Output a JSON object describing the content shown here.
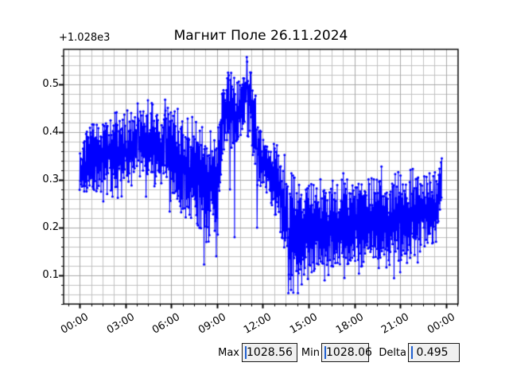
{
  "chart_data": {
    "type": "line",
    "title": "Магнит Поле 26.11.2024",
    "offset_text": "+1.028e3",
    "xlabel": "",
    "ylabel": "",
    "line_color": "#0000ff",
    "marker": "o",
    "grid": {
      "major": true,
      "minor": true,
      "major_color": "#a8a8a8",
      "minor_color": "#c2c2c2"
    },
    "y_offset_base": 1028,
    "xlim": [
      -1.05,
      24.8
    ],
    "ylim": [
      0.04,
      0.5733
    ],
    "xticks": [
      {
        "t": 0,
        "label": "00:00"
      },
      {
        "t": 3,
        "label": "03:00"
      },
      {
        "t": 6,
        "label": "06:00"
      },
      {
        "t": 9,
        "label": "09:00"
      },
      {
        "t": 12,
        "label": "12:00"
      },
      {
        "t": 15,
        "label": "15:00"
      },
      {
        "t": 18,
        "label": "18:00"
      },
      {
        "t": 21,
        "label": "21:00"
      },
      {
        "t": 24,
        "label": "00:00"
      }
    ],
    "yticks": [
      {
        "v": 0.1,
        "label": "0.1"
      },
      {
        "v": 0.2,
        "label": "0.2"
      },
      {
        "v": 0.3,
        "label": "0.3"
      },
      {
        "v": 0.4,
        "label": "0.4"
      },
      {
        "v": 0.5,
        "label": "0.5"
      }
    ],
    "x_minor_step": 0.75,
    "y_minor_step": 0.02,
    "t_start": 0,
    "t_end": 23.73,
    "n_points": 950,
    "seed": 11,
    "value_clamp": [
      0.063,
      0.557
    ],
    "envelope": [
      [
        0.0,
        0.31,
        0.05
      ],
      [
        0.5,
        0.34,
        0.065
      ],
      [
        1.0,
        0.35,
        0.07
      ],
      [
        2.0,
        0.355,
        0.072
      ],
      [
        3.0,
        0.36,
        0.075
      ],
      [
        4.2,
        0.378,
        0.08
      ],
      [
        5.0,
        0.372,
        0.08
      ],
      [
        6.0,
        0.35,
        0.085
      ],
      [
        7.0,
        0.325,
        0.095
      ],
      [
        8.0,
        0.3,
        0.105
      ],
      [
        8.6,
        0.285,
        0.1
      ],
      [
        9.0,
        0.275,
        0.105
      ],
      [
        9.2,
        0.35,
        0.1
      ],
      [
        9.45,
        0.455,
        0.07
      ],
      [
        9.8,
        0.45,
        0.072
      ],
      [
        10.1,
        0.425,
        0.085
      ],
      [
        10.5,
        0.46,
        0.068
      ],
      [
        10.9,
        0.478,
        0.068
      ],
      [
        11.2,
        0.47,
        0.072
      ],
      [
        11.4,
        0.43,
        0.085
      ],
      [
        11.6,
        0.37,
        0.075
      ],
      [
        11.85,
        0.345,
        0.06
      ],
      [
        12.0,
        0.335,
        0.05
      ],
      [
        12.5,
        0.315,
        0.06
      ],
      [
        13.0,
        0.285,
        0.075
      ],
      [
        13.4,
        0.235,
        0.1
      ],
      [
        13.7,
        0.19,
        0.115
      ],
      [
        14.0,
        0.178,
        0.108
      ],
      [
        14.5,
        0.19,
        0.1
      ],
      [
        15.0,
        0.2,
        0.095
      ],
      [
        16.0,
        0.196,
        0.09
      ],
      [
        17.0,
        0.2,
        0.09
      ],
      [
        18.0,
        0.206,
        0.098
      ],
      [
        19.0,
        0.214,
        0.092
      ],
      [
        20.0,
        0.22,
        0.09
      ],
      [
        21.0,
        0.216,
        0.093
      ],
      [
        22.0,
        0.228,
        0.085
      ],
      [
        23.0,
        0.24,
        0.078
      ],
      [
        23.4,
        0.246,
        0.072
      ],
      [
        23.73,
        0.3,
        0.045
      ]
    ],
    "anchors": [
      [
        3.8,
        0.46
      ],
      [
        5.6,
        0.468
      ],
      [
        8.15,
        0.123
      ],
      [
        8.95,
        0.14
      ],
      [
        9.85,
        0.28
      ],
      [
        10.15,
        0.18
      ],
      [
        10.95,
        0.557
      ],
      [
        11.63,
        0.2
      ],
      [
        13.67,
        0.063
      ],
      [
        23.72,
        0.345
      ]
    ],
    "stats": {
      "max": 1028.56,
      "min": 1028.06,
      "delta": 0.495
    }
  },
  "widgets": {
    "max": {
      "label": "Max",
      "value": "1028.56"
    },
    "min": {
      "label": "Min",
      "value": "1028.06"
    },
    "delta": {
      "label": "Delta",
      "value": " 0.495"
    }
  }
}
